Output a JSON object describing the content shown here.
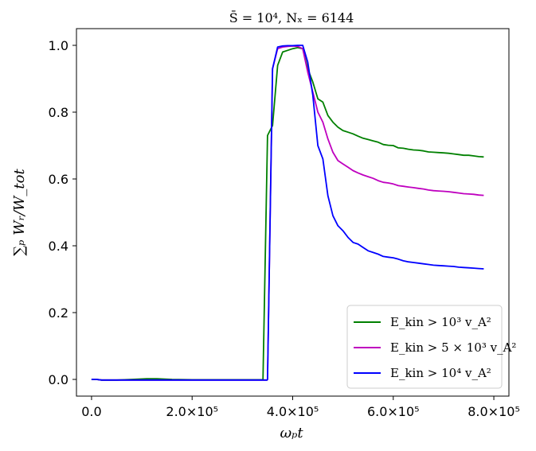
{
  "chart_data": {
    "type": "line",
    "title": "S̄ = 10⁴, Nₓ = 6144",
    "xlabel": "ωₚt",
    "ylabel": "∑ₚ Wᵣ/W_tot",
    "xlim": [
      -30000,
      830000
    ],
    "ylim": [
      -0.05,
      1.05
    ],
    "xticks": [
      0,
      200000,
      400000,
      600000,
      800000
    ],
    "xtick_labels": [
      "0.0",
      "2.0×10⁵",
      "4.0×10⁵",
      "6.0×10⁵",
      "8.0×10⁵"
    ],
    "yticks": [
      0.0,
      0.2,
      0.4,
      0.6,
      0.8,
      1.0
    ],
    "ytick_labels": [
      "0.0",
      "0.2",
      "0.4",
      "0.6",
      "0.8",
      "1.0"
    ],
    "grid": false,
    "legend_position": "lower-right",
    "series": [
      {
        "name": "E_kin > 10³ v_A²",
        "color": "#008000",
        "x": [
          0,
          10000,
          20000,
          50000,
          80000,
          110000,
          130000,
          160000,
          200000,
          250000,
          300000,
          340000,
          341000,
          350000,
          360000,
          370000,
          380000,
          390000,
          400000,
          410000,
          420000,
          430000,
          440000,
          450000,
          460000,
          470000,
          480000,
          490000,
          500000,
          510000,
          520000,
          530000,
          540000,
          550000,
          560000,
          570000,
          580000,
          590000,
          600000,
          610000,
          620000,
          630000,
          640000,
          650000,
          660000,
          670000,
          680000,
          690000,
          700000,
          710000,
          720000,
          730000,
          740000,
          750000,
          760000,
          770000,
          780000
        ],
        "y": [
          0.0,
          0.0,
          -0.002,
          -0.002,
          0.0,
          0.002,
          0.002,
          0.0,
          -0.001,
          -0.001,
          -0.001,
          -0.001,
          0.0,
          0.73,
          0.76,
          0.94,
          0.98,
          0.985,
          0.99,
          0.993,
          0.99,
          0.93,
          0.89,
          0.84,
          0.83,
          0.79,
          0.77,
          0.755,
          0.745,
          0.74,
          0.735,
          0.728,
          0.722,
          0.718,
          0.714,
          0.71,
          0.703,
          0.701,
          0.7,
          0.693,
          0.692,
          0.689,
          0.687,
          0.686,
          0.684,
          0.681,
          0.68,
          0.679,
          0.678,
          0.677,
          0.675,
          0.673,
          0.671,
          0.671,
          0.669,
          0.667,
          0.666
        ]
      },
      {
        "name": "E_kin > 5 × 10³ v_A²",
        "color": "#bf00bf",
        "x": [
          0,
          10000,
          20000,
          50000,
          80000,
          110000,
          130000,
          160000,
          200000,
          250000,
          300000,
          340000,
          349000,
          350000,
          360000,
          370000,
          380000,
          390000,
          400000,
          410000,
          420000,
          430000,
          440000,
          450000,
          460000,
          470000,
          480000,
          490000,
          500000,
          510000,
          520000,
          530000,
          540000,
          550000,
          560000,
          570000,
          580000,
          590000,
          600000,
          610000,
          620000,
          630000,
          640000,
          650000,
          660000,
          670000,
          680000,
          690000,
          700000,
          710000,
          720000,
          730000,
          740000,
          750000,
          760000,
          770000,
          780000
        ],
        "y": [
          0.0,
          0.0,
          -0.002,
          -0.002,
          -0.002,
          -0.002,
          -0.002,
          -0.002,
          -0.002,
          -0.002,
          -0.002,
          -0.002,
          -0.002,
          0.0,
          0.93,
          0.99,
          0.995,
          0.997,
          0.998,
          0.997,
          0.99,
          0.92,
          0.86,
          0.8,
          0.77,
          0.72,
          0.68,
          0.655,
          0.645,
          0.635,
          0.625,
          0.618,
          0.612,
          0.607,
          0.602,
          0.595,
          0.59,
          0.588,
          0.585,
          0.58,
          0.578,
          0.576,
          0.574,
          0.572,
          0.57,
          0.567,
          0.565,
          0.564,
          0.563,
          0.562,
          0.56,
          0.558,
          0.556,
          0.555,
          0.554,
          0.552,
          0.551
        ]
      },
      {
        "name": "E_kin > 10⁴ v_A²",
        "color": "#0000ff",
        "x": [
          0,
          10000,
          20000,
          50000,
          80000,
          110000,
          130000,
          160000,
          200000,
          250000,
          300000,
          340000,
          349000,
          350000,
          360000,
          370000,
          380000,
          390000,
          400000,
          410000,
          420000,
          430000,
          440000,
          450000,
          460000,
          470000,
          480000,
          490000,
          500000,
          510000,
          520000,
          530000,
          540000,
          550000,
          560000,
          570000,
          580000,
          590000,
          600000,
          610000,
          620000,
          630000,
          640000,
          650000,
          660000,
          670000,
          680000,
          690000,
          700000,
          710000,
          720000,
          730000,
          740000,
          750000,
          760000,
          770000,
          780000
        ],
        "y": [
          0.0,
          0.0,
          -0.002,
          -0.002,
          -0.002,
          -0.002,
          -0.002,
          -0.002,
          -0.002,
          -0.002,
          -0.002,
          -0.002,
          -0.002,
          0.0,
          0.93,
          0.995,
          0.998,
          0.999,
          0.999,
          1.0,
          1.0,
          0.95,
          0.85,
          0.7,
          0.66,
          0.55,
          0.49,
          0.46,
          0.445,
          0.425,
          0.41,
          0.405,
          0.395,
          0.385,
          0.38,
          0.375,
          0.368,
          0.366,
          0.364,
          0.36,
          0.355,
          0.352,
          0.35,
          0.348,
          0.346,
          0.344,
          0.342,
          0.341,
          0.34,
          0.339,
          0.338,
          0.336,
          0.335,
          0.334,
          0.333,
          0.332,
          0.331
        ]
      }
    ]
  }
}
